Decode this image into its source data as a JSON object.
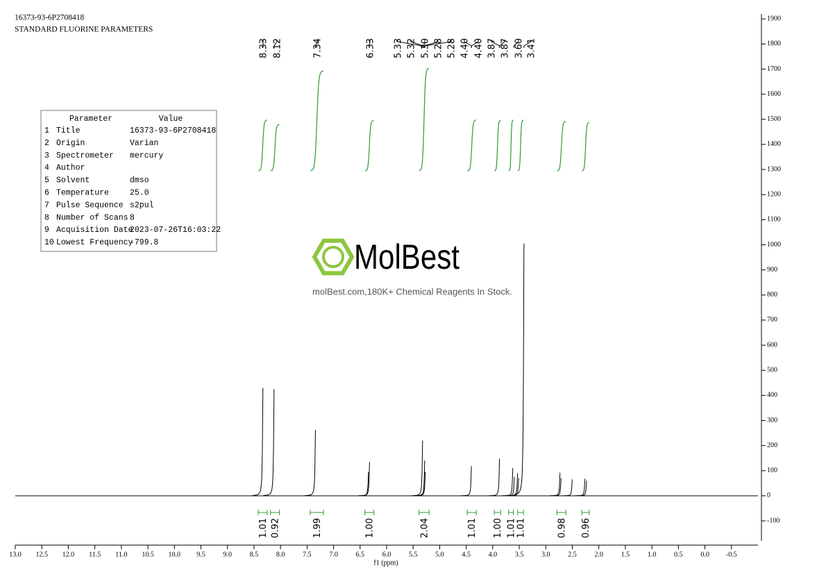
{
  "header": {
    "lines": [
      "16373-93-6P2708418",
      "STANDARD FLUORINE PARAMETERS"
    ]
  },
  "parameter_table": {
    "columns": [
      "Parameter",
      "Value"
    ],
    "rows": [
      [
        "1",
        "Title",
        "16373-93-6P2708418"
      ],
      [
        "2",
        "Origin",
        "Varian"
      ],
      [
        "3",
        "Spectrometer",
        "mercury"
      ],
      [
        "4",
        "Author"
      ],
      [
        "5",
        "Solvent",
        "dmso"
      ],
      [
        "6",
        "Temperature",
        "25.0"
      ],
      [
        "7",
        "Pulse Sequence",
        "s2pul"
      ],
      [
        "8",
        "Number of Scans",
        "8"
      ],
      [
        "9",
        "Acquisition Date",
        "2023-07-26T16:03:22"
      ],
      [
        "10",
        "Lowest Frequency",
        "-799.8"
      ]
    ]
  },
  "watermark": {
    "brand": "MolBest",
    "tagline": "molBest.com,180K+ Chemical Reagents In Stock."
  },
  "chart_data": {
    "type": "nmr",
    "x_label": "f1 (ppm)",
    "color": "#000000",
    "integral_color": "#2e9a2e",
    "x": [
      8.33,
      8.12,
      7.34,
      6.34,
      6.32,
      5.32,
      5.28,
      5.27,
      4.4,
      3.87,
      3.62,
      3.59,
      3.53,
      3.51,
      3.41,
      2.73,
      2.71,
      2.5,
      2.26,
      2.23
    ],
    "values": [
      430,
      425,
      262,
      95,
      135,
      220,
      140,
      95,
      118,
      148,
      110,
      75,
      90,
      70,
      1005,
      92,
      70,
      65,
      68,
      60
    ],
    "peak_labels": [
      8.33,
      8.12,
      7.34,
      6.33,
      5.33,
      5.32,
      {
        "value": 5.3,
        "label": "5.30"
      },
      5.28,
      5.28,
      {
        "value": 4.4,
        "label": "4.40"
      },
      {
        "value": 4.4,
        "label": "4.40"
      },
      3.87,
      3.87,
      {
        "value": 3.6,
        "label": "3.60"
      },
      3.41
    ],
    "integrals": {
      "ranges": [
        [
          8.42,
          8.25
        ],
        [
          8.19,
          8.02
        ],
        [
          7.44,
          7.19
        ],
        [
          6.41,
          6.24
        ],
        [
          5.39,
          5.2
        ],
        [
          4.48,
          4.31
        ],
        [
          3.97,
          3.85
        ],
        [
          3.7,
          3.61
        ],
        [
          3.53,
          3.42
        ],
        [
          2.79,
          2.62
        ],
        [
          2.32,
          2.18
        ]
      ],
      "values": [
        1.01,
        0.92,
        1.99,
        1.0,
        2.04,
        1.01,
        1.0,
        1.01,
        1.01,
        0.98,
        0.96
      ],
      "value_labels": [
        "1.01",
        "0.92",
        "1.99",
        "1.00",
        "2.04",
        "1.01",
        "1.00",
        "1.01",
        "1.01",
        "0.98",
        "0.96"
      ]
    },
    "xlim": [
      13.0,
      -1.0
    ],
    "xticks": [
      {
        "value": 13,
        "label": "13.0"
      },
      12.5,
      {
        "value": 12,
        "label": "12.0"
      },
      11.5,
      {
        "value": 11,
        "label": "11.0"
      },
      10.5,
      {
        "value": 10,
        "label": "10.0"
      },
      9.5,
      {
        "value": 9,
        "label": "9.0"
      },
      8.5,
      {
        "value": 8,
        "label": "8.0"
      },
      7.5,
      {
        "value": 7,
        "label": "7.0"
      },
      6.5,
      {
        "value": 6,
        "label": "6.0"
      },
      5.5,
      {
        "value": 5,
        "label": "5.0"
      },
      4.5,
      {
        "value": 4,
        "label": "4.0"
      },
      3.5,
      {
        "value": 3,
        "label": "3.0"
      },
      2.5,
      {
        "value": 2,
        "label": "2.0"
      },
      1.5,
      {
        "value": 1,
        "label": "1.0"
      },
      0.5,
      {
        "value": 0,
        "label": "0.0"
      },
      -0.5
    ],
    "ylim": [
      -180,
      1920
    ],
    "yticks": [
      -100,
      0,
      100,
      200,
      300,
      400,
      500,
      600,
      700,
      800,
      900,
      1000,
      1100,
      1200,
      1300,
      1400,
      1500,
      1600,
      1700,
      1800,
      1900
    ]
  }
}
